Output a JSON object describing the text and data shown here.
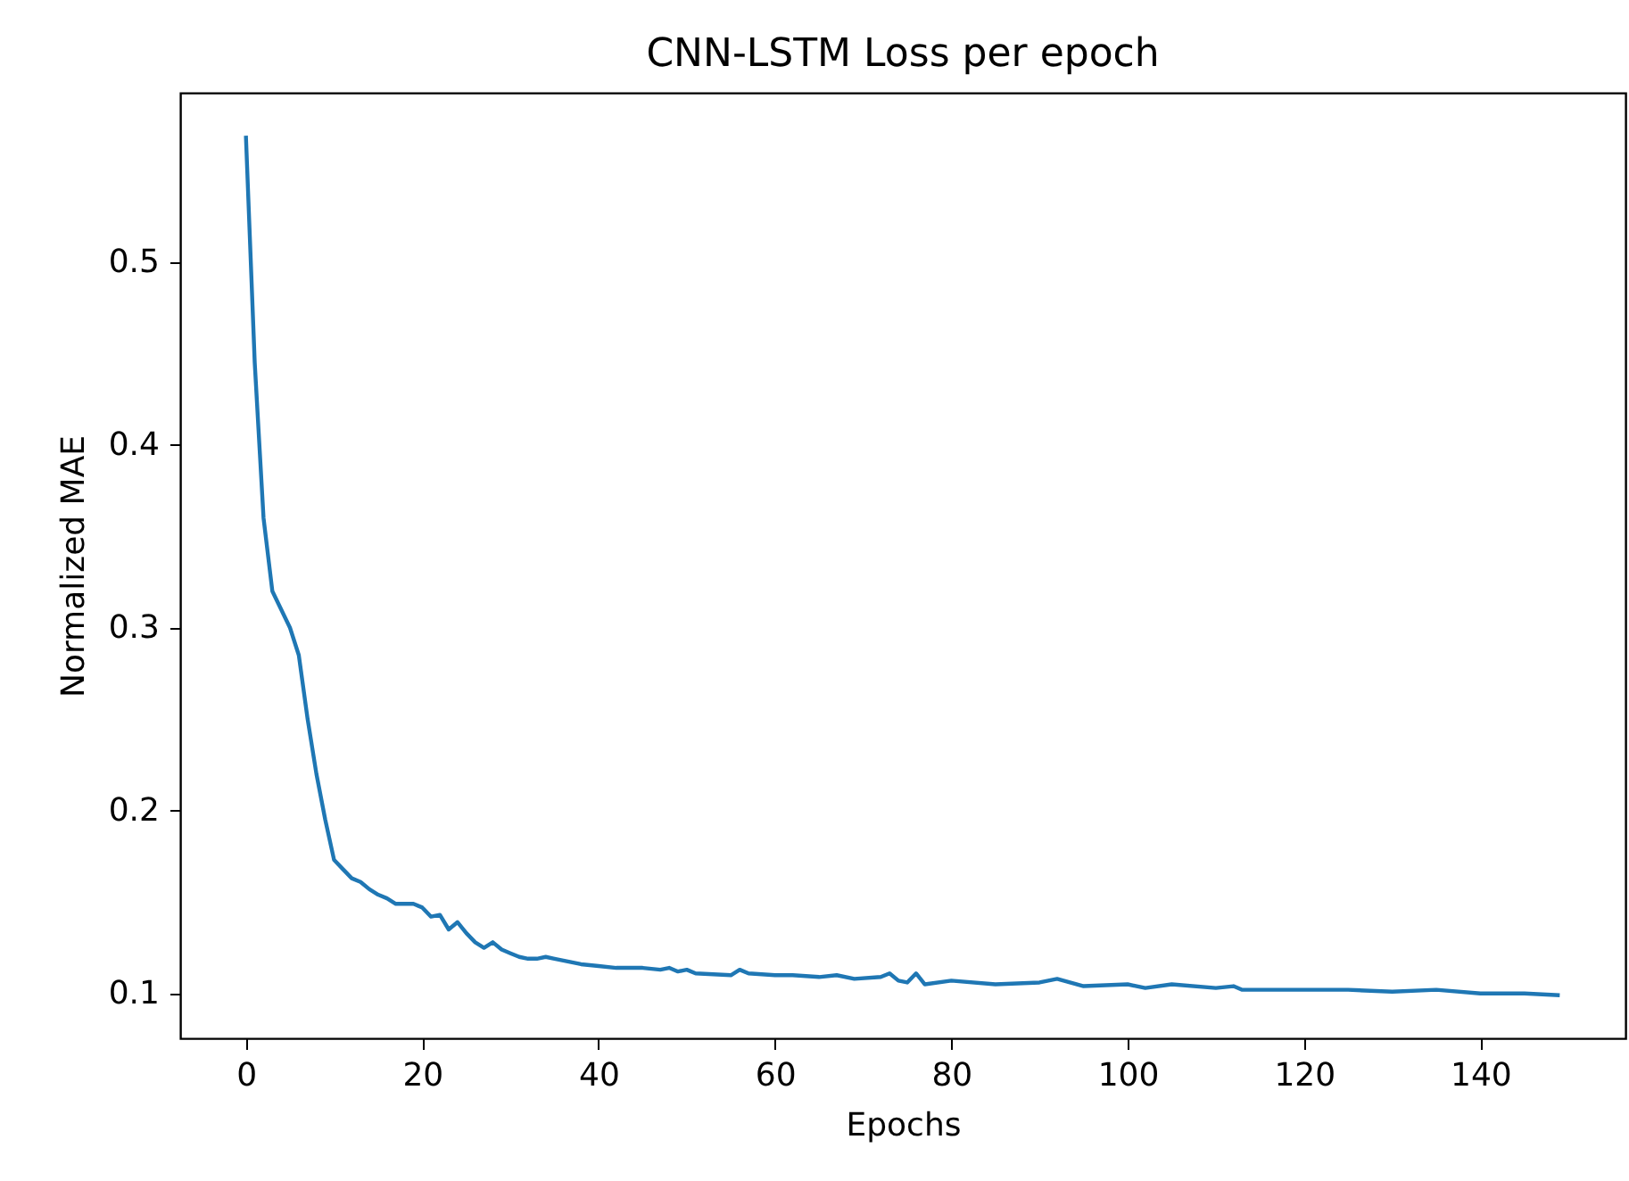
{
  "chart_data": {
    "type": "line",
    "title": "CNN-LSTM Loss per epoch",
    "xlabel": "Epochs",
    "ylabel": "Normalized MAE",
    "x": [
      0,
      1,
      2,
      3,
      4,
      5,
      6,
      7,
      8,
      9,
      10,
      11,
      12,
      13,
      14,
      15,
      16,
      17,
      18,
      19,
      20,
      21,
      22,
      23,
      24,
      25,
      26,
      27,
      28,
      29,
      30,
      31,
      32,
      33,
      34,
      35,
      36,
      37,
      38,
      40,
      42,
      45,
      47,
      48,
      49,
      50,
      51,
      55,
      56,
      57,
      60,
      62,
      65,
      67,
      69,
      72,
      73,
      74,
      75,
      76,
      77,
      80,
      85,
      90,
      92,
      95,
      100,
      102,
      105,
      110,
      112,
      113,
      120,
      125,
      130,
      135,
      140,
      145,
      149
    ],
    "series": [
      {
        "color": "#1f77b4",
        "values": [
          0.569,
          0.445,
          0.36,
          0.32,
          0.31,
          0.3,
          0.285,
          0.25,
          0.22,
          0.195,
          0.173,
          0.168,
          0.163,
          0.161,
          0.157,
          0.154,
          0.152,
          0.149,
          0.149,
          0.149,
          0.147,
          0.142,
          0.143,
          0.135,
          0.139,
          0.133,
          0.128,
          0.125,
          0.128,
          0.124,
          0.122,
          0.12,
          0.119,
          0.119,
          0.12,
          0.119,
          0.118,
          0.117,
          0.116,
          0.115,
          0.114,
          0.114,
          0.113,
          0.114,
          0.112,
          0.113,
          0.111,
          0.11,
          0.113,
          0.111,
          0.11,
          0.11,
          0.109,
          0.11,
          0.108,
          0.109,
          0.111,
          0.107,
          0.106,
          0.111,
          0.105,
          0.107,
          0.105,
          0.106,
          0.108,
          0.104,
          0.105,
          0.103,
          0.105,
          0.103,
          0.104,
          0.102,
          0.102,
          0.102,
          0.101,
          0.102,
          0.1,
          0.1,
          0.099
        ]
      }
    ],
    "xlim": [
      -7.45,
      156.45
    ],
    "ylim": [
      0.0755,
      0.5925
    ],
    "xticks": [
      0,
      20,
      40,
      60,
      80,
      100,
      120,
      140
    ],
    "yticks": [
      0.1,
      0.2,
      0.3,
      0.4,
      0.5
    ],
    "grid": false,
    "marker": "none",
    "line_style": "solid"
  }
}
